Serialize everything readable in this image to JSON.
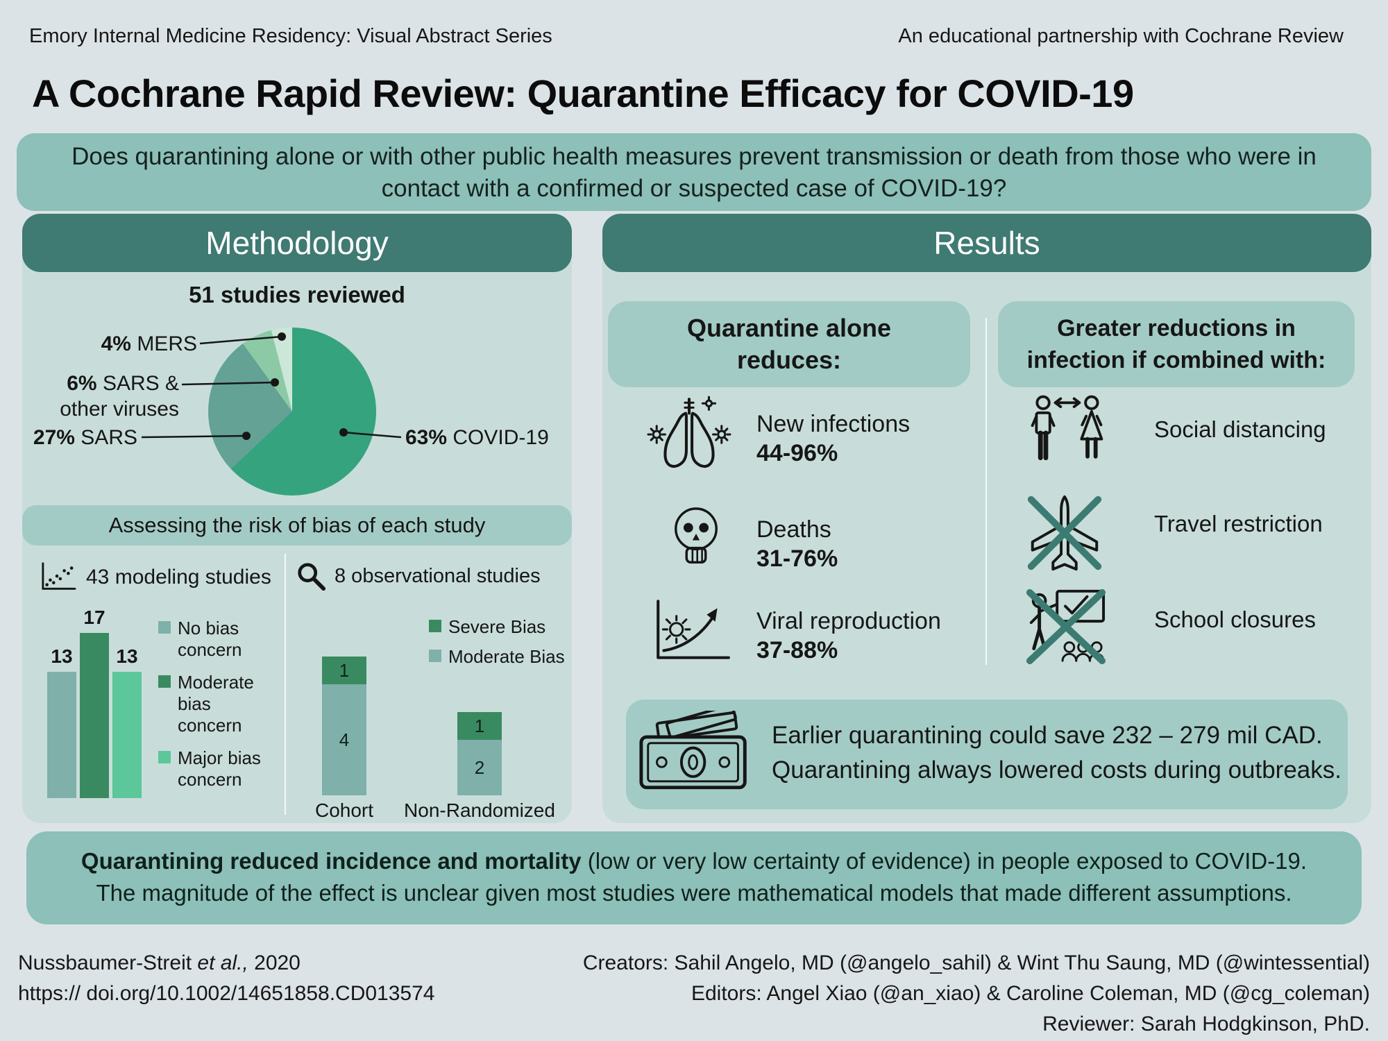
{
  "header": {
    "left": "Emory Internal Medicine Residency: Visual Abstract Series",
    "right": "An educational partnership with Cochrane Review"
  },
  "title": "A Cochrane Rapid Review: Quarantine Efficacy for COVID-19",
  "question": "Does quarantining alone or with other public health measures prevent transmission or death from those who were in contact with a confirmed or suspected case of COVID-19?",
  "methodology": {
    "header": "Methodology",
    "pie_title": "51 studies reviewed",
    "pie_labels": [
      {
        "pct": "4%",
        "name": "MERS"
      },
      {
        "pct": "6%",
        "name": "SARS &",
        "name2": "other viruses"
      },
      {
        "pct": "27%",
        "name": "SARS"
      },
      {
        "pct": "63%",
        "name": "COVID-19"
      }
    ],
    "bias_banner": "Assessing the risk of bias of each study",
    "modeling": {
      "caption": "43 modeling studies",
      "values": [
        "13",
        "17",
        "13"
      ],
      "legend": [
        "No bias concern",
        "Moderate bias concern",
        "Major bias concern"
      ]
    },
    "observational": {
      "caption": "8 observational studies",
      "legend": [
        "Severe Bias",
        "Moderate Bias"
      ],
      "bars": [
        {
          "label": "Cohort",
          "severe": "1",
          "moderate": "4"
        },
        {
          "label": "Non-Randomized",
          "severe": "1",
          "moderate": "2"
        }
      ]
    }
  },
  "results": {
    "header": "Results",
    "left_title_line1": "Quarantine alone",
    "left_title_line2": "reduces:",
    "reduces": [
      {
        "label": "New infections",
        "range": "44-96%"
      },
      {
        "label": "Deaths",
        "range": "31-76%"
      },
      {
        "label": "Viral reproduction",
        "range": "37-88%"
      }
    ],
    "right_title_line1": "Greater reductions in",
    "right_title_line2": "infection if combined with:",
    "combined": [
      "Social distancing",
      "Travel restriction",
      "School closures"
    ],
    "money_line1": "Earlier quarantining could save 232 – 279 mil CAD.",
    "money_line2": "Quarantining always lowered costs during outbreaks."
  },
  "conclusion": {
    "bold": "Quarantining reduced incidence and mortality",
    "line1_rest": " (low or very low certainty of evidence) in people exposed to COVID-19.",
    "line2": "The magnitude of the effect is unclear given most studies were mathematical models that made different assumptions."
  },
  "footer": {
    "citation_pre": "Nussbaumer-Streit ",
    "citation_etal": "et al.,",
    "citation_post": " 2020",
    "doi": "https:// doi.org/10.1002/14651858.CD013574",
    "credits": [
      "Creators: Sahil Angelo, MD (@angelo_sahil) & Wint Thu Saung, MD (@wintessential)",
      "Editors: Angel Xiao (@an_xiao) & Caroline Coleman, MD (@cg_coleman)",
      "Reviewer: Sarah Hodgkinson, PhD."
    ]
  },
  "colors": {
    "page_bg": "#dce3e6",
    "banner": "#8cc0b9",
    "panel_bg": "#c8ddd9",
    "panel_header": "#3f7a73",
    "subbox": "#a3cbc5",
    "cross": "#3c7b72"
  },
  "chart_data": [
    {
      "type": "pie",
      "title": "51 studies reviewed",
      "labels": [
        "COVID-19",
        "SARS",
        "SARS & other viruses",
        "MERS"
      ],
      "values": [
        63,
        27,
        6,
        4
      ],
      "unit": "percent of studies",
      "colors": [
        "#35a37e",
        "#63a295",
        "#8ccaa6",
        "#cbe7d8"
      ]
    },
    {
      "type": "bar",
      "title": "43 modeling studies",
      "categories": [
        "No bias concern",
        "Moderate bias concern",
        "Major bias concern"
      ],
      "values": [
        13,
        17,
        13
      ],
      "colors": [
        "#7fb0aa",
        "#3a8a61",
        "#5cc79a"
      ],
      "ylim": [
        0,
        17
      ]
    },
    {
      "type": "bar",
      "stacked": true,
      "title": "8 observational studies",
      "categories": [
        "Cohort",
        "Non-Randomized"
      ],
      "series": [
        {
          "name": "Moderate Bias",
          "values": [
            4,
            2
          ],
          "color": "#7fb0aa"
        },
        {
          "name": "Severe Bias",
          "values": [
            1,
            1
          ],
          "color": "#3a8a61"
        }
      ],
      "ylim": [
        0,
        5
      ]
    }
  ]
}
